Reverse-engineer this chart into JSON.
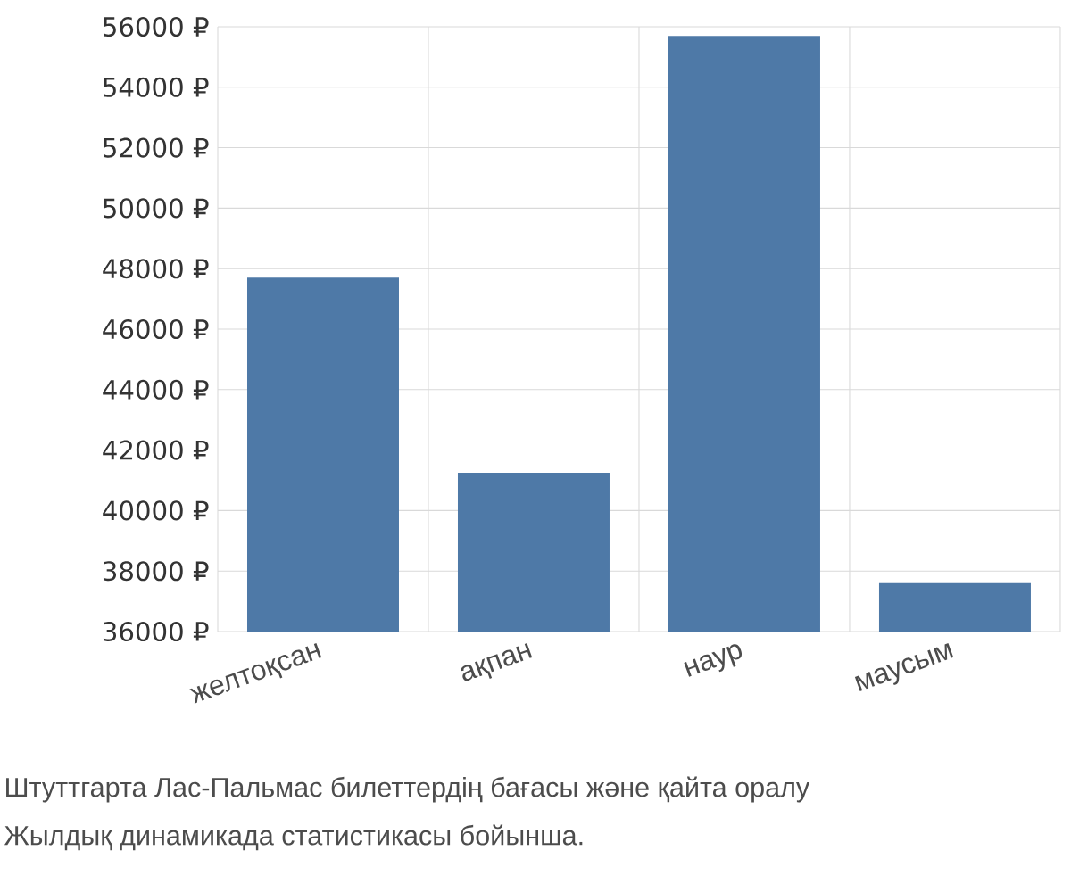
{
  "chart_data": {
    "type": "bar",
    "categories": [
      "желтоқсан",
      "ақпан",
      "наур",
      "маусым"
    ],
    "values": [
      47700,
      41250,
      55700,
      37600
    ],
    "color": "#4e79a7",
    "ylim": [
      36000,
      56000
    ],
    "yticks": [
      {
        "value": 36000,
        "label": "36000 ₽"
      },
      {
        "value": 38000,
        "label": "38000 ₽"
      },
      {
        "value": 40000,
        "label": "40000 ₽"
      },
      {
        "value": 42000,
        "label": "42000 ₽"
      },
      {
        "value": 44000,
        "label": "44000 ₽"
      },
      {
        "value": 46000,
        "label": "46000 ₽"
      },
      {
        "value": 48000,
        "label": "48000 ₽"
      },
      {
        "value": 50000,
        "label": "50000 ₽"
      },
      {
        "value": 52000,
        "label": "52000 ₽"
      },
      {
        "value": 54000,
        "label": "54000 ₽"
      },
      {
        "value": 56000,
        "label": "56000 ₽"
      }
    ],
    "grid": true,
    "annotations": [
      "Штуттгарта Лас-Пальмас билеттердің бағасы және қайта оралу",
      "Жылдық динамикада статистикасы бойынша."
    ]
  }
}
